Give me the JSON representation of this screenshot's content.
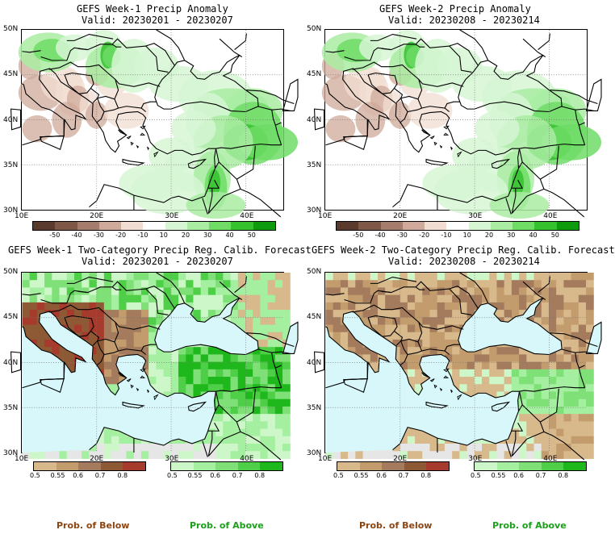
{
  "panels": [
    {
      "title": "GEFS Week-1 Precip Anomaly",
      "valid": "Valid: 20230201 - 20230207",
      "kind": "anomaly"
    },
    {
      "title": "GEFS Week-2 Precip Anomaly",
      "valid": "Valid: 20230208 - 20230214",
      "kind": "anomaly"
    },
    {
      "title": "GEFS Week-1 Two-Category Precip Reg. Calib. Forecast",
      "valid": "Valid: 20230201 - 20230207",
      "kind": "prob"
    },
    {
      "title": "GEFS Week-2 Two-Category Precip Reg. Calib. Forecast",
      "valid": "Valid: 20230208 - 20230214",
      "kind": "prob"
    }
  ],
  "lat_labels": [
    "50N",
    "45N",
    "40N",
    "35N",
    "30N"
  ],
  "lon_labels": [
    "10E",
    "20E",
    "30E",
    "40E"
  ],
  "anomaly_colorbar": {
    "labels": [
      "-50",
      "-40",
      "-30",
      "-20",
      "-10",
      "10",
      "20",
      "30",
      "40",
      "50"
    ],
    "colors": [
      "#5a3a2c",
      "#7e5746",
      "#a67d6c",
      "#cfa99a",
      "#f2ddd2",
      "#ffffff",
      "#d6f6d3",
      "#a9eca2",
      "#6fdc66",
      "#35c12e",
      "#0d9a0d"
    ]
  },
  "below_colorbar": {
    "labels": [
      "0.5",
      "0.55",
      "0.6",
      "0.7",
      "0.8"
    ],
    "colors": [
      "#d8b98c",
      "#c39c6e",
      "#a47b5c",
      "#8e5a35",
      "#a63a2c"
    ]
  },
  "above_colorbar": {
    "labels": [
      "0.5",
      "0.55",
      "0.6",
      "0.7",
      "0.8"
    ],
    "colors": [
      "#cdf7c8",
      "#a5efa0",
      "#7ee077",
      "#4fcf48",
      "#1fb81c"
    ]
  },
  "footer": {
    "below": "Prob. of Below",
    "above": "Prob. of Above"
  },
  "colors": {
    "below_text": "#8b4513",
    "above_text": "#1aa01a",
    "sea": "#d7f7fb",
    "land": "#ffffff",
    "na": "#e6e6e6"
  }
}
